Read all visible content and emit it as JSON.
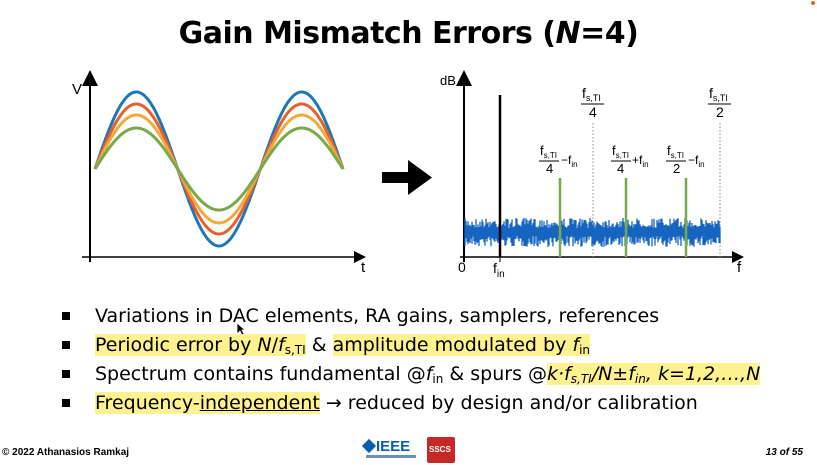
{
  "title": {
    "prefix": "Gain Mismatch Errors (",
    "italic": "N",
    "suffix": "=4)"
  },
  "left_plot": {
    "y_label": "V",
    "x_label": "t"
  },
  "right_plot": {
    "y_label": "dB",
    "x_label": "f",
    "origin_label": "0",
    "fin_label": "in",
    "fin_base": "f",
    "top_labels": [
      {
        "num": "fs,TI",
        "den": "4"
      },
      {
        "num": "fs,TI",
        "den": "2"
      }
    ],
    "spur_labels": [
      {
        "num": "fs,TI",
        "den": "4",
        "op": "−f",
        "sub": "in"
      },
      {
        "num": "fs,TI",
        "den": "4",
        "op": "+f",
        "sub": "in"
      },
      {
        "num": "fs,TI",
        "den": "2",
        "op": "−f",
        "sub": "in"
      }
    ]
  },
  "bullets": {
    "b1": "Variations in DAC elements, RA gains, samplers, references",
    "b2_a": "Periodic error by ",
    "b2_n": "N",
    "b2_slash": "/",
    "b2_f": "f",
    "b2_sub": "s,TI",
    "b2_amp": " & ",
    "b2_b": "amplitude modulated by ",
    "b2_f2": "f",
    "b2_sub2": "in",
    "b3_a": "Spectrum contains fundamental @",
    "b3_f": "f",
    "b3_sub": "in",
    "b3_b": " & spurs @",
    "b3_c": "k·f",
    "b3_sub2": "s,TI",
    "b3_d": "/N±f",
    "b3_sub3": "in",
    "b3_e": ", k=1,2,…,N",
    "b4_a": "Frequency-",
    "b4_u": "independent",
    "b4_b": " → reduced by design and/or calibration"
  },
  "footer": {
    "copyright": "© 2022 Athanasios Ramkaj",
    "page": "13 of 55",
    "ieee": "IEEE",
    "sscs": "SSCS"
  },
  "colors": {
    "wave_blue": "#1f77b4",
    "wave_red": "#e8612c",
    "wave_orange": "#f3a83b",
    "wave_green": "#78a94a",
    "noise_blue": "#1565c0",
    "spur_green": "#78a94a",
    "highlight": "#fdf28f"
  }
}
